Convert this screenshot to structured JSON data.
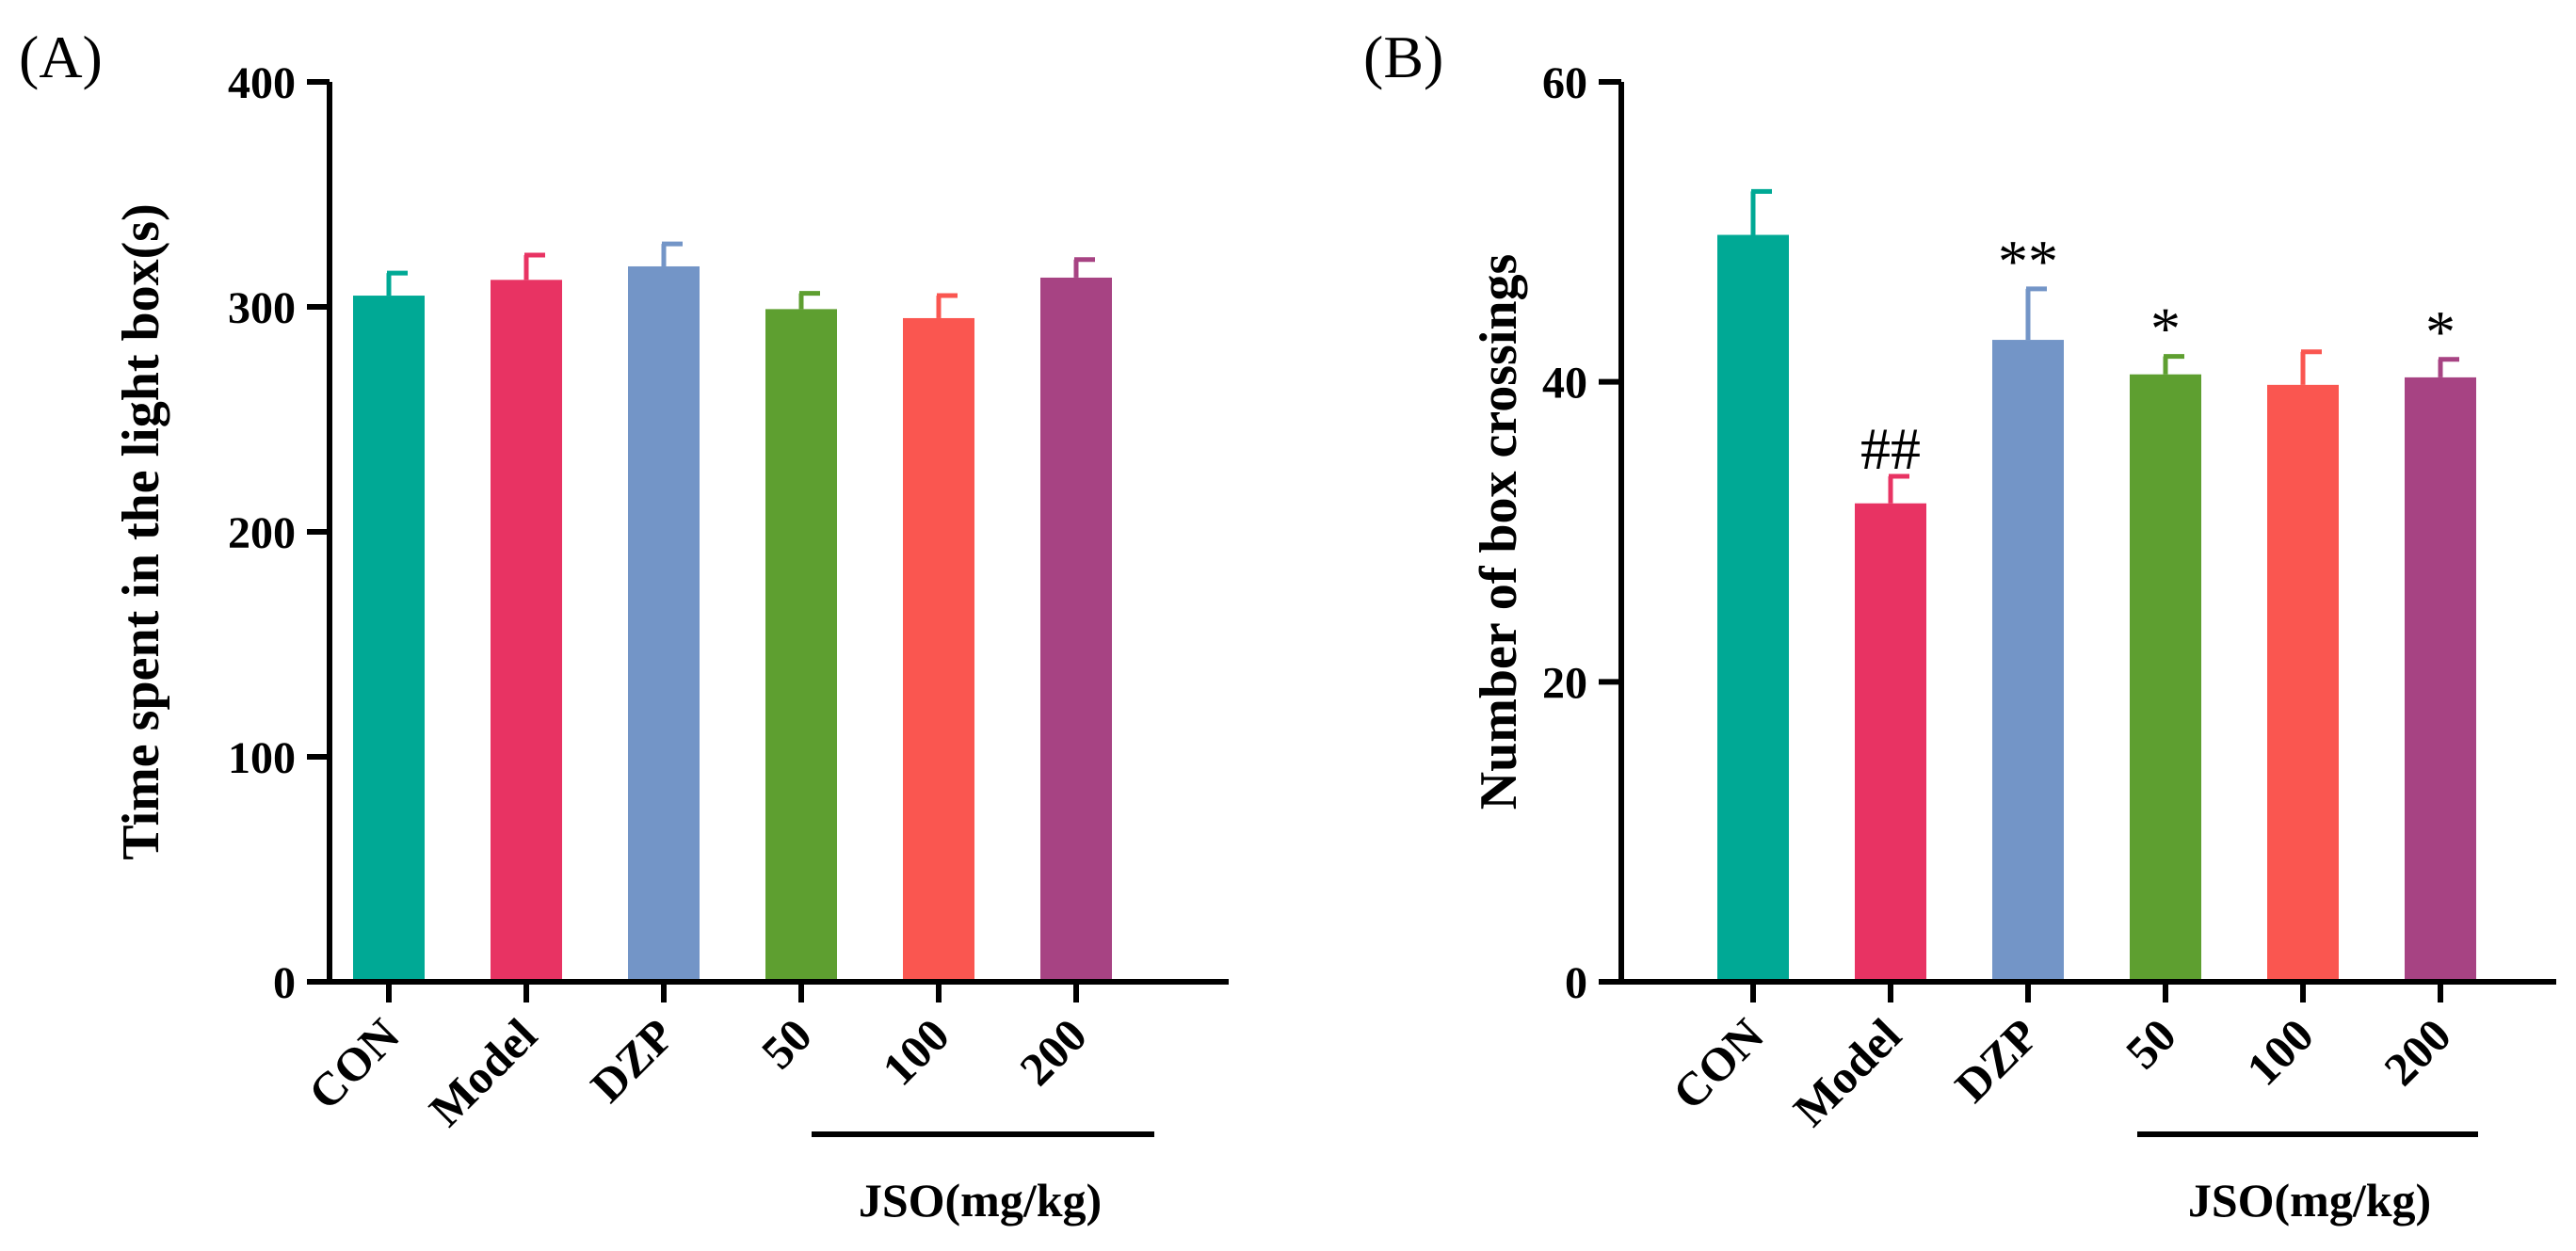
{
  "chart_data": [
    {
      "type": "bar",
      "panel_label": "(A)",
      "ylabel": "Time spent in the light box(s)",
      "xlabel": "",
      "ylim": [
        0,
        400
      ],
      "yticks": [
        "0",
        "100",
        "200",
        "300",
        "400"
      ],
      "categories": [
        "CON",
        "Model",
        "DZP",
        "50",
        "100",
        "200"
      ],
      "values": [
        305,
        312,
        318,
        299,
        295,
        313
      ],
      "errors": [
        10,
        11,
        10,
        7,
        10,
        8
      ],
      "annotations": [
        "",
        "",
        "",
        "",
        "",
        ""
      ],
      "group_label": "JSO(mg/kg)",
      "colors": [
        "#00A995",
        "#E83363",
        "#7395C7",
        "#5E9F30",
        "#FA5650",
        "#A74383"
      ]
    },
    {
      "type": "bar",
      "panel_label": "(B)",
      "ylabel": "Number of box crossings",
      "xlabel": "",
      "ylim": [
        0,
        60
      ],
      "yticks": [
        "0",
        "20",
        "40",
        "60"
      ],
      "categories": [
        "CON",
        "Model",
        "DZP",
        "50",
        "100",
        "200"
      ],
      "values": [
        49.8,
        31.9,
        42.8,
        40.5,
        39.8,
        40.3
      ],
      "errors": [
        2.9,
        1.8,
        3.4,
        1.2,
        2.2,
        1.2
      ],
      "annotations": [
        "",
        "##",
        "**",
        "*",
        "",
        "*"
      ],
      "group_label": "JSO(mg/kg)",
      "colors": [
        "#00A995",
        "#E83363",
        "#7395C7",
        "#5E9F30",
        "#FA5650",
        "#A74383"
      ]
    }
  ]
}
